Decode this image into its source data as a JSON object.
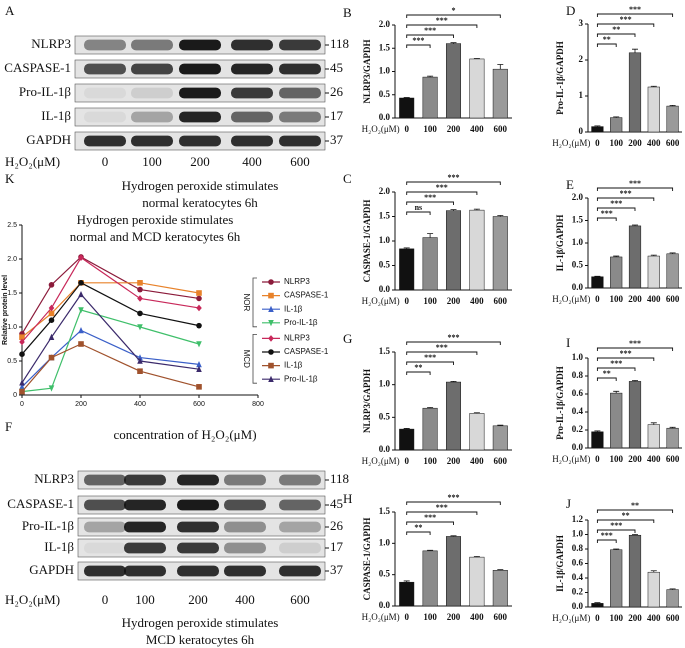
{
  "blots": [
    {
      "panel": "A",
      "rows": [
        {
          "label": "NLRP3",
          "kda": 118
        },
        {
          "label": "CASPASE-1",
          "kda": 45
        },
        {
          "label": "Pro-IL-1β",
          "kda": 26
        },
        {
          "label": "IL-1β",
          "kda": 17
        },
        {
          "label": "GAPDH",
          "kda": 37
        }
      ],
      "x_label": "H₂O₂(μM)",
      "lanes": [
        "0",
        "100",
        "200",
        "400",
        "600"
      ],
      "caption": [
        "Hydrogen peroxide stimulates",
        "normal keratocytes 6h"
      ]
    },
    {
      "panel": "F",
      "rows": [
        {
          "label": "NLRP3",
          "kda": 118
        },
        {
          "label": "CASPASE-1",
          "kda": 45
        },
        {
          "label": "Pro-IL-1β",
          "kda": 26
        },
        {
          "label": "IL-1β",
          "kda": 17
        },
        {
          "label": "GAPDH",
          "kda": 37
        }
      ],
      "x_label": "H₂O₂(μM)",
      "lanes": [
        "0",
        "100",
        "200",
        "400",
        "600"
      ],
      "caption": [
        "Hydrogen peroxide stimulates",
        "MCD keratocytes 6h"
      ]
    }
  ],
  "chart_data": [
    {
      "type": "line",
      "panel": "K",
      "title": [
        "Hydrogen peroxide stimulates",
        "normal and MCD keratocytes 6h"
      ],
      "y_label": "Relative protein level",
      "x_label": "concentration of H₂O₂(μM)",
      "x": [
        0,
        100,
        200,
        400,
        600
      ],
      "xlim": [
        0,
        800
      ],
      "xticks": [
        0,
        200,
        400,
        600,
        800
      ],
      "ylim": [
        0,
        2.5
      ],
      "yticks": [
        0,
        0.5,
        {
          "value": 1,
          "label": "1.0"
        },
        1.5,
        {
          "value": 2,
          "label": "2.0"
        },
        2.5
      ],
      "legend_groups": [
        "NOR",
        "MCD"
      ],
      "series": [
        {
          "name": "NLRP3",
          "color": "#8b1a3a",
          "marker": "circle",
          "values": [
            0.9,
            1.62,
            2.03,
            1.55,
            1.42
          ]
        },
        {
          "name": "CASPASE-1",
          "color": "#e8822a",
          "marker": "square",
          "values": [
            0.85,
            1.2,
            1.65,
            1.65,
            1.5
          ]
        },
        {
          "name": "IL-1β",
          "color": "#3a5fc8",
          "marker": "triangle",
          "values": [
            0.12,
            0.55,
            0.95,
            0.55,
            0.45
          ]
        },
        {
          "name": "Pro-IL-1β",
          "color": "#3fbf6a",
          "marker": "triangle-down",
          "values": [
            0.05,
            0.1,
            1.25,
            1.0,
            0.75
          ]
        },
        {
          "name": "NLRP3",
          "color": "#c8285a",
          "marker": "diamond",
          "values": [
            0.78,
            1.28,
            2.02,
            1.42,
            1.28
          ]
        },
        {
          "name": "CASPASE-1",
          "color": "#111111",
          "marker": "circle",
          "values": [
            0.6,
            1.1,
            1.65,
            1.2,
            1.02
          ]
        },
        {
          "name": "IL-1β",
          "color": "#a0522d",
          "marker": "square",
          "values": [
            0.05,
            0.55,
            0.75,
            0.35,
            0.12
          ]
        },
        {
          "name": "Pro-IL-1β",
          "color": "#3b2a6b",
          "marker": "triangle",
          "values": [
            0.18,
            0.85,
            1.48,
            0.5,
            0.38
          ]
        }
      ]
    },
    {
      "type": "bar",
      "panel": "B",
      "y_label": "NLRP3/GAPDH",
      "x_label": "H₂O₂(μM)",
      "categories": [
        "0",
        "100",
        "200",
        "400",
        "600"
      ],
      "values": [
        0.43,
        0.88,
        1.6,
        1.27,
        1.05
      ],
      "errors": [
        0.01,
        0.02,
        0.02,
        0.01,
        0.1
      ],
      "colors": [
        "#111111",
        "#8a8a8a",
        "#6d6d6d",
        "#d8d8d8",
        "#9a9a9a"
      ],
      "significance": [
        "***",
        "***",
        "***",
        "*"
      ],
      "ylim": [
        0,
        2
      ],
      "yticks": [
        {
          "value": 0,
          "label": "0.0"
        },
        0.5,
        {
          "value": 1,
          "label": "1.0"
        },
        1.5,
        {
          "value": 2,
          "label": "2.0"
        }
      ]
    },
    {
      "type": "bar",
      "panel": "C",
      "y_label": "CASPASE-1/GAPDH",
      "x_label": "H₂O₂(μM)",
      "categories": [
        "0",
        "100",
        "200",
        "400",
        "600"
      ],
      "values": [
        0.84,
        1.07,
        1.62,
        1.63,
        1.5
      ],
      "errors": [
        0.02,
        0.08,
        0.02,
        0.02,
        0.02
      ],
      "colors": [
        "#111111",
        "#8a8a8a",
        "#6d6d6d",
        "#d8d8d8",
        "#9a9a9a"
      ],
      "significance": [
        "ns",
        "***",
        "***",
        "***"
      ],
      "ylim": [
        0,
        2
      ],
      "yticks": [
        {
          "value": 0,
          "label": "0.0"
        },
        0.5,
        {
          "value": 1,
          "label": "1.0"
        },
        1.5,
        {
          "value": 2,
          "label": "2.0"
        }
      ]
    },
    {
      "type": "bar",
      "panel": "D",
      "y_label": "Pro-IL-1β/GAPDH",
      "x_label": "H₂O₂(μM)",
      "categories": [
        "0",
        "100",
        "200",
        "400",
        "600"
      ],
      "values": [
        0.15,
        0.4,
        2.2,
        1.25,
        0.72
      ],
      "errors": [
        0.02,
        0.02,
        0.1,
        0.02,
        0.02
      ],
      "colors": [
        "#111111",
        "#8a8a8a",
        "#6d6d6d",
        "#d8d8d8",
        "#9a9a9a"
      ],
      "significance": [
        "**",
        "**",
        "***",
        "***"
      ],
      "ylim": [
        0,
        3
      ],
      "yticks": [
        0,
        1,
        2,
        3
      ]
    },
    {
      "type": "bar",
      "panel": "E",
      "y_label": "IL-1β/GAPDH",
      "x_label": "H₂O₂(μM)",
      "categories": [
        "0",
        "100",
        "200",
        "400",
        "600"
      ],
      "values": [
        0.25,
        0.69,
        1.38,
        0.71,
        0.76
      ],
      "errors": [
        0.01,
        0.02,
        0.02,
        0.02,
        0.02
      ],
      "colors": [
        "#111111",
        "#8a8a8a",
        "#6d6d6d",
        "#d8d8d8",
        "#9a9a9a"
      ],
      "significance": [
        "***",
        "***",
        "***",
        "***"
      ],
      "ylim": [
        0,
        2
      ],
      "yticks": [
        {
          "value": 0,
          "label": "0.0"
        },
        0.5,
        {
          "value": 1,
          "label": "1.0"
        },
        1.5,
        {
          "value": 2,
          "label": "2.0"
        }
      ]
    },
    {
      "type": "bar",
      "panel": "G",
      "y_label": "NLRP3/GAPDH",
      "x_label": "H₂O₂(μM)",
      "categories": [
        "0",
        "100",
        "200",
        "400",
        "600"
      ],
      "values": [
        0.32,
        0.64,
        1.04,
        0.56,
        0.37
      ],
      "errors": [
        0.01,
        0.01,
        0.01,
        0.01,
        0.01
      ],
      "colors": [
        "#111111",
        "#8a8a8a",
        "#6d6d6d",
        "#d8d8d8",
        "#9a9a9a"
      ],
      "significance": [
        "**",
        "***",
        "***",
        "***"
      ],
      "ylim": [
        0,
        1.5
      ],
      "yticks": [
        {
          "value": 0,
          "label": "0.0"
        },
        0.5,
        {
          "value": 1,
          "label": "1.0"
        },
        1.5
      ]
    },
    {
      "type": "bar",
      "panel": "H",
      "y_label": "CASPASE-1/GAPDH",
      "x_label": "H₂O₂(μM)",
      "categories": [
        "0",
        "100",
        "200",
        "400",
        "600"
      ],
      "values": [
        0.38,
        0.88,
        1.11,
        0.78,
        0.57
      ],
      "errors": [
        0.02,
        0.01,
        0.01,
        0.01,
        0.01
      ],
      "colors": [
        "#111111",
        "#8a8a8a",
        "#6d6d6d",
        "#d8d8d8",
        "#9a9a9a"
      ],
      "significance": [
        "**",
        "***",
        "***",
        "***"
      ],
      "ylim": [
        0,
        1.5
      ],
      "yticks": [
        {
          "value": 0,
          "label": "0.0"
        },
        0.5,
        {
          "value": 1,
          "label": "1.0"
        },
        1.5
      ]
    },
    {
      "type": "bar",
      "panel": "I",
      "y_label": "Pro-IL-1β/GAPDH",
      "x_label": "H₂O₂(μM)",
      "categories": [
        "0",
        "100",
        "200",
        "400",
        "600"
      ],
      "values": [
        0.18,
        0.61,
        0.74,
        0.26,
        0.22
      ],
      "errors": [
        0.01,
        0.02,
        0.01,
        0.02,
        0.01
      ],
      "colors": [
        "#111111",
        "#8a8a8a",
        "#6d6d6d",
        "#d8d8d8",
        "#9a9a9a"
      ],
      "significance": [
        "**",
        "***",
        "***",
        "***"
      ],
      "ylim": [
        0,
        1
      ],
      "yticks": [
        {
          "value": 0,
          "label": "0.0"
        },
        0.2,
        0.4,
        0.6,
        0.8,
        {
          "value": 1,
          "label": "1.0"
        }
      ]
    },
    {
      "type": "bar",
      "panel": "J",
      "y_label": "IL-1β/GAPDH",
      "x_label": "H₂O₂(μM)",
      "categories": [
        "0",
        "100",
        "200",
        "400",
        "600"
      ],
      "values": [
        0.05,
        0.79,
        0.99,
        0.48,
        0.24
      ],
      "errors": [
        0.01,
        0.01,
        0.01,
        0.02,
        0.01
      ],
      "colors": [
        "#111111",
        "#8a8a8a",
        "#6d6d6d",
        "#d8d8d8",
        "#9a9a9a"
      ],
      "significance": [
        "***",
        "***",
        "**",
        "**"
      ],
      "ylim": [
        0,
        1.2
      ],
      "yticks": [
        {
          "value": 0,
          "label": "0.0"
        },
        0.2,
        0.4,
        0.6,
        0.8,
        {
          "value": 1,
          "label": "1.0"
        },
        1.2
      ]
    }
  ]
}
